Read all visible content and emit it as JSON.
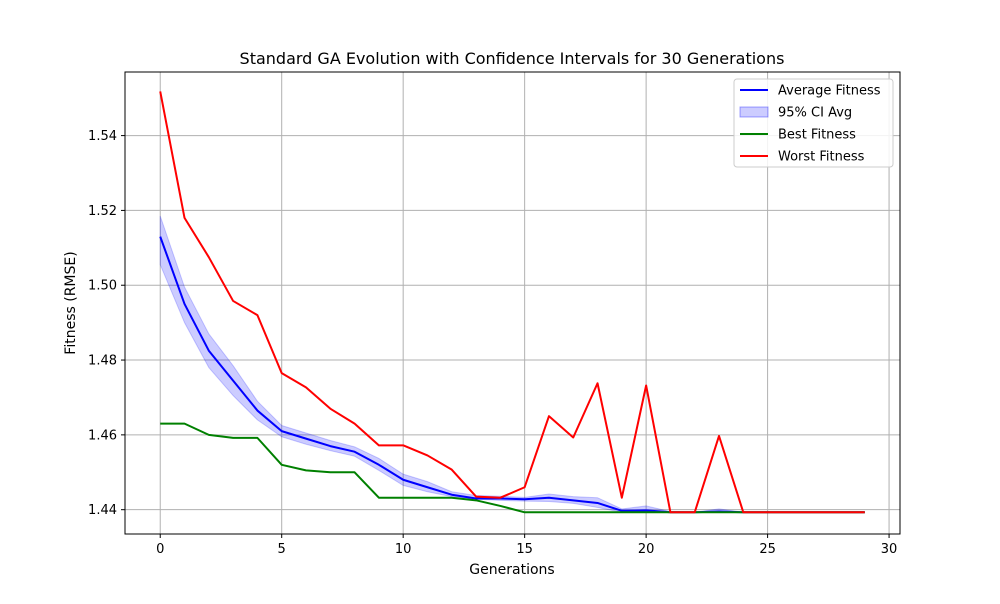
{
  "chart_data": {
    "type": "line",
    "title": "Standard GA Evolution with Confidence Intervals for 30 Generations",
    "xlabel": "Generations",
    "ylabel": "Fitness (RMSE)",
    "xlim": [
      -1.45,
      30.45
    ],
    "ylim": [
      1.4335,
      1.557
    ],
    "xticks": [
      0,
      5,
      10,
      15,
      20,
      25,
      30
    ],
    "yticks": [
      1.44,
      1.46,
      1.48,
      1.5,
      1.52,
      1.54
    ],
    "grid": true,
    "legend_position": "top-right",
    "x": [
      0,
      1,
      2,
      3,
      4,
      5,
      6,
      7,
      8,
      9,
      10,
      11,
      12,
      13,
      14,
      15,
      16,
      17,
      18,
      19,
      20,
      21,
      22,
      23,
      24,
      25,
      26,
      27,
      28,
      29
    ],
    "series": [
      {
        "name": "Average Fitness",
        "kind": "line",
        "color": "#0000ff",
        "values": [
          1.513,
          1.495,
          1.4825,
          1.4745,
          1.4665,
          1.461,
          1.459,
          1.457,
          1.4555,
          1.452,
          1.448,
          1.446,
          1.444,
          1.443,
          1.443,
          1.4428,
          1.4432,
          1.4425,
          1.4418,
          1.4397,
          1.4398,
          1.4393,
          1.4393,
          1.4395,
          1.4393,
          1.4393,
          1.4393,
          1.4393,
          1.4393,
          1.4393
        ]
      },
      {
        "name": "95% CI Avg",
        "kind": "band",
        "color": "#0000ff",
        "opacity": 0.2,
        "lower": [
          1.5055,
          1.49,
          1.478,
          1.4705,
          1.464,
          1.4595,
          1.4575,
          1.4558,
          1.4543,
          1.4505,
          1.4465,
          1.4448,
          1.4435,
          1.4428,
          1.4425,
          1.4423,
          1.4422,
          1.4417,
          1.4406,
          1.4393,
          1.4393,
          1.4393,
          1.4393,
          1.4393,
          1.4393,
          1.4393,
          1.4393,
          1.4393,
          1.4393,
          1.4393
        ],
        "upper": [
          1.5185,
          1.4995,
          1.487,
          1.4785,
          1.469,
          1.4625,
          1.4605,
          1.4585,
          1.4568,
          1.4537,
          1.4495,
          1.4475,
          1.4448,
          1.4438,
          1.4436,
          1.4433,
          1.4442,
          1.4435,
          1.4432,
          1.4402,
          1.441,
          1.4395,
          1.4393,
          1.4402,
          1.4393,
          1.4393,
          1.4393,
          1.4393,
          1.4393,
          1.4393
        ]
      },
      {
        "name": "Best Fitness",
        "kind": "line",
        "color": "#008000",
        "values": [
          1.463,
          1.463,
          1.46,
          1.4592,
          1.4592,
          1.452,
          1.4505,
          1.45,
          1.45,
          1.4432,
          1.4432,
          1.4432,
          1.4432,
          1.4425,
          1.441,
          1.4393,
          1.4393,
          1.4393,
          1.4393,
          1.4393,
          1.4393,
          1.4393,
          1.4393,
          1.4393,
          1.4393,
          1.4393,
          1.4393,
          1.4393,
          1.4393,
          1.4393
        ]
      },
      {
        "name": "Worst Fitness",
        "kind": "line",
        "color": "#ff0000",
        "values": [
          1.5518,
          1.518,
          1.5075,
          1.4958,
          1.492,
          1.4765,
          1.4727,
          1.467,
          1.463,
          1.4572,
          1.4572,
          1.4545,
          1.4507,
          1.4435,
          1.4432,
          1.446,
          1.465,
          1.4593,
          1.4738,
          1.4432,
          1.4732,
          1.4393,
          1.4393,
          1.4597,
          1.4393,
          1.4393,
          1.4393,
          1.4393,
          1.4393,
          1.4393
        ]
      }
    ]
  }
}
